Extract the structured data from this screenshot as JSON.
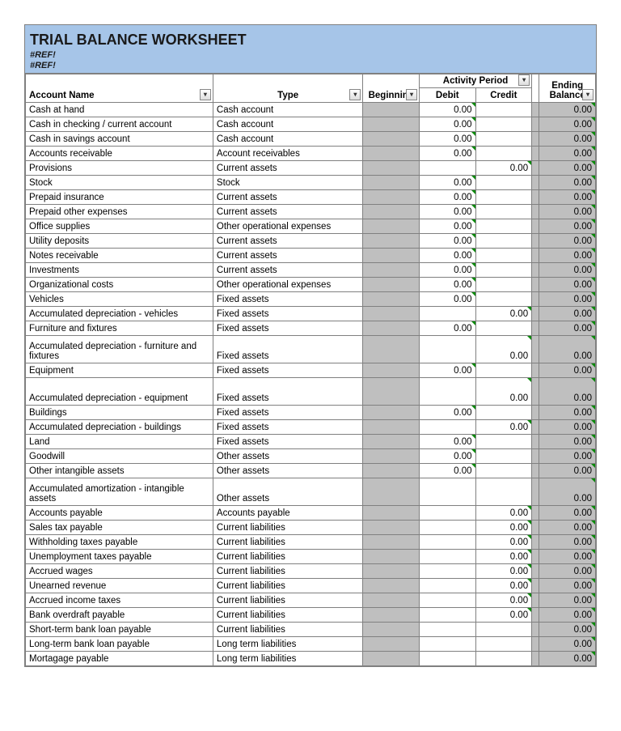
{
  "title": "TRIAL BALANCE WORKSHEET",
  "ref1": "#REF!",
  "ref2": "#REF!",
  "cols": {
    "acct": "Account Name",
    "type": "Type",
    "beg": "Beginning",
    "act": "Activity Period",
    "debit": "Debit",
    "credit": "Credit",
    "end": "Ending Balance"
  },
  "styling": {
    "header_bg": "#a6c5e8",
    "shaded_bg": "#bfbfbf",
    "border_color": "#808080",
    "font_family": "Arial",
    "title_fontsize": 18,
    "body_fontsize": 11.5,
    "canvas": "768x903"
  },
  "rows": [
    {
      "acct": "Cash at hand",
      "type": "Cash account",
      "debit": "0.00",
      "credit": "",
      "end": "0.00"
    },
    {
      "acct": "Cash in checking / current account",
      "type": "Cash account",
      "debit": "0.00",
      "credit": "",
      "end": "0.00"
    },
    {
      "acct": "Cash in savings account",
      "type": "Cash account",
      "debit": "0.00",
      "credit": "",
      "end": "0.00"
    },
    {
      "acct": "Accounts receivable",
      "type": "Account receivables",
      "debit": "0.00",
      "credit": "",
      "end": "0.00"
    },
    {
      "acct": "Provisions",
      "type": "Current assets",
      "debit": "",
      "credit": "0.00",
      "end": "0.00"
    },
    {
      "acct": "Stock",
      "type": "Stock",
      "debit": "0.00",
      "credit": "",
      "end": "0.00"
    },
    {
      "acct": "Prepaid insurance",
      "type": "Current assets",
      "debit": "0.00",
      "credit": "",
      "end": "0.00"
    },
    {
      "acct": "Prepaid other expenses",
      "type": "Current assets",
      "debit": "0.00",
      "credit": "",
      "end": "0.00"
    },
    {
      "acct": "Office supplies",
      "type": "Other operational expenses",
      "debit": "0.00",
      "credit": "",
      "end": "0.00"
    },
    {
      "acct": "Utility deposits",
      "type": "Current assets",
      "debit": "0.00",
      "credit": "",
      "end": "0.00"
    },
    {
      "acct": "Notes receivable",
      "type": "Current assets",
      "debit": "0.00",
      "credit": "",
      "end": "0.00"
    },
    {
      "acct": "Investments",
      "type": "Current assets",
      "debit": "0.00",
      "credit": "",
      "end": "0.00"
    },
    {
      "acct": "Organizational costs",
      "type": "Other operational expenses",
      "debit": "0.00",
      "credit": "",
      "end": "0.00"
    },
    {
      "acct": "Vehicles",
      "type": "Fixed assets",
      "debit": "0.00",
      "credit": "",
      "end": "0.00"
    },
    {
      "acct": "Accumulated depreciation - vehicles",
      "type": "Fixed assets",
      "debit": "",
      "credit": "0.00",
      "end": "0.00"
    },
    {
      "acct": "Furniture and fixtures",
      "type": "Fixed assets",
      "debit": "0.00",
      "credit": "",
      "end": "0.00"
    },
    {
      "acct": "Accumulated depreciation - furniture and fixtures",
      "type": "Fixed assets",
      "debit": "",
      "credit": "0.00",
      "end": "0.00",
      "tall": true
    },
    {
      "acct": "Equipment",
      "type": "Fixed assets",
      "debit": "0.00",
      "credit": "",
      "end": "0.00"
    },
    {
      "acct": "Accumulated depreciation - equipment",
      "type": "Fixed assets",
      "debit": "",
      "credit": "0.00",
      "end": "0.00",
      "tall": true
    },
    {
      "acct": "Buildings",
      "type": "Fixed assets",
      "debit": "0.00",
      "credit": "",
      "end": "0.00"
    },
    {
      "acct": "Accumulated depreciation - buildings",
      "type": "Fixed assets",
      "debit": "",
      "credit": "0.00",
      "end": "0.00"
    },
    {
      "acct": "Land",
      "type": "Fixed assets",
      "debit": "0.00",
      "credit": "",
      "end": "0.00"
    },
    {
      "acct": "Goodwill",
      "type": "Other assets",
      "debit": "0.00",
      "credit": "",
      "end": "0.00"
    },
    {
      "acct": "Other intangible assets",
      "type": "Other assets",
      "debit": "0.00",
      "credit": "",
      "end": "0.00"
    },
    {
      "acct": "Accumulated amortization - intangible assets",
      "type": "Other assets",
      "debit": "",
      "credit": "",
      "end": "0.00",
      "tall": true
    },
    {
      "acct": "Accounts payable",
      "type": "Accounts payable",
      "debit": "",
      "credit": "0.00",
      "end": "0.00"
    },
    {
      "acct": "Sales tax payable",
      "type": "Current liabilities",
      "debit": "",
      "credit": "0.00",
      "end": "0.00"
    },
    {
      "acct": "Withholding taxes payable",
      "type": "Current liabilities",
      "debit": "",
      "credit": "0.00",
      "end": "0.00"
    },
    {
      "acct": "Unemployment taxes payable",
      "type": "Current liabilities",
      "debit": "",
      "credit": "0.00",
      "end": "0.00"
    },
    {
      "acct": "Accrued wages",
      "type": "Current liabilities",
      "debit": "",
      "credit": "0.00",
      "end": "0.00"
    },
    {
      "acct": "Unearned revenue",
      "type": "Current liabilities",
      "debit": "",
      "credit": "0.00",
      "end": "0.00"
    },
    {
      "acct": "Accrued income taxes",
      "type": "Current liabilities",
      "debit": "",
      "credit": "0.00",
      "end": "0.00"
    },
    {
      "acct": "Bank overdraft payable",
      "type": "Current liabilities",
      "debit": "",
      "credit": "0.00",
      "end": "0.00"
    },
    {
      "acct": "Short-term bank loan payable",
      "type": "Current liabilities",
      "debit": "",
      "credit": "",
      "end": "0.00"
    },
    {
      "acct": "Long-term bank loan payable",
      "type": "Long term liabilities",
      "debit": "",
      "credit": "",
      "end": "0.00"
    },
    {
      "acct": "Mortagage payable",
      "type": "Long term liabilities",
      "debit": "",
      "credit": "",
      "end": "0.00"
    }
  ]
}
